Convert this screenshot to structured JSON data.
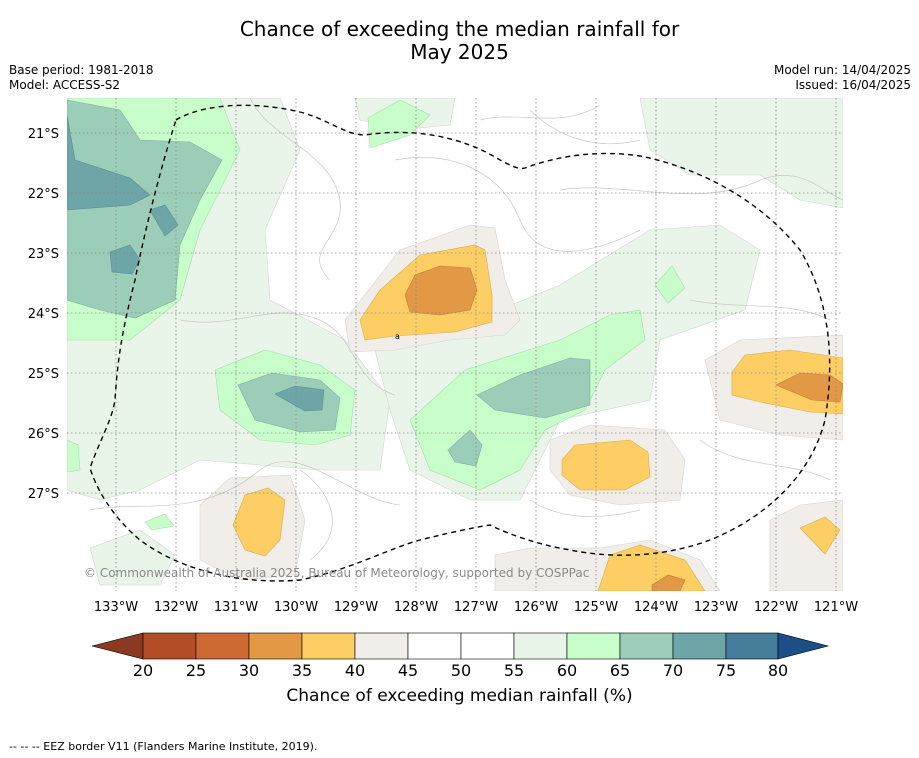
{
  "title": {
    "line1": "Chance of exceeding the median rainfall for",
    "line2": "May 2025"
  },
  "meta_left": {
    "base_period": "Base period: 1981-2018",
    "model": "Model: ACCESS-S2"
  },
  "meta_right": {
    "model_run": "Model run: 14/04/2025",
    "issued": "Issued: 16/04/2025"
  },
  "map": {
    "lon_labels": [
      "133°W",
      "132°W",
      "131°W",
      "130°W",
      "129°W",
      "128°W",
      "127°W",
      "126°W",
      "125°W",
      "124°W",
      "123°W",
      "122°W",
      "121°W"
    ],
    "lat_labels": [
      "21°S",
      "22°S",
      "23°S",
      "24°S",
      "25°S",
      "26°S",
      "27°S"
    ],
    "copyright": "© Commonwealth of Australia 2025, Bureau of Meteorology, supported by COSPPac",
    "eez_border": "dashed-black"
  },
  "colorbar": {
    "title": "Chance of exceeding median rainfall (%)",
    "ticks": [
      "20",
      "25",
      "30",
      "35",
      "40",
      "45",
      "50",
      "55",
      "60",
      "65",
      "70",
      "75",
      "80"
    ],
    "colors": [
      "#b24d27",
      "#cd6933",
      "#e29845",
      "#fdce64",
      "#f1ede9",
      "#ffffff",
      "#ffffff",
      "#e9f5e9",
      "#c7fec9",
      "#9ccdb9",
      "#6ea5a6",
      "#447c9a"
    ],
    "under_color": "#8b3a22",
    "over_color": "#1c4f86"
  },
  "footnote": "--  --  -- EEZ border V11 (Flanders Marine Institute, 2019)."
}
